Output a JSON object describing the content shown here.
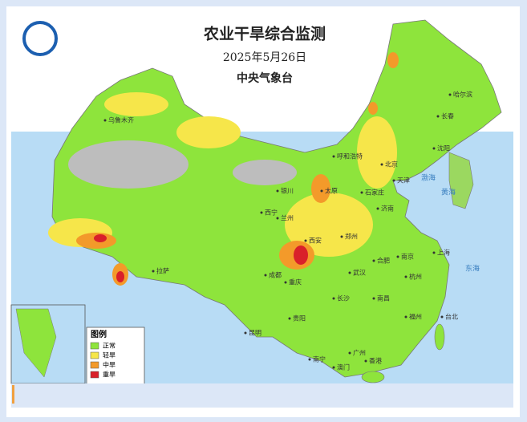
{
  "header": {
    "title": "农业干旱综合监测",
    "date": "2025年5月26日",
    "issuer": "中央气象台"
  },
  "legend": {
    "title": "图例",
    "items": [
      {
        "label": "正常",
        "color": "#8ee43c"
      },
      {
        "label": "轻旱",
        "color": "#f6e64a"
      },
      {
        "label": "中旱",
        "color": "#f39a2a"
      },
      {
        "label": "重旱",
        "color": "#d9202a"
      }
    ]
  },
  "places": [
    "乌鲁木齐",
    "哈尔滨",
    "长春",
    "沈阳",
    "呼和浩特",
    "北京",
    "天津",
    "银川",
    "太原",
    "石家庄",
    "济南",
    "西宁",
    "兰州",
    "郑州",
    "西安",
    "南京",
    "上海",
    "合肥",
    "武汉",
    "杭州",
    "成都",
    "重庆",
    "长沙",
    "南昌",
    "福州",
    "台北",
    "贵阳",
    "昆明",
    "拉萨",
    "南宁",
    "广州",
    "香港",
    "澳门",
    "渤海",
    "黄海",
    "东海"
  ]
}
